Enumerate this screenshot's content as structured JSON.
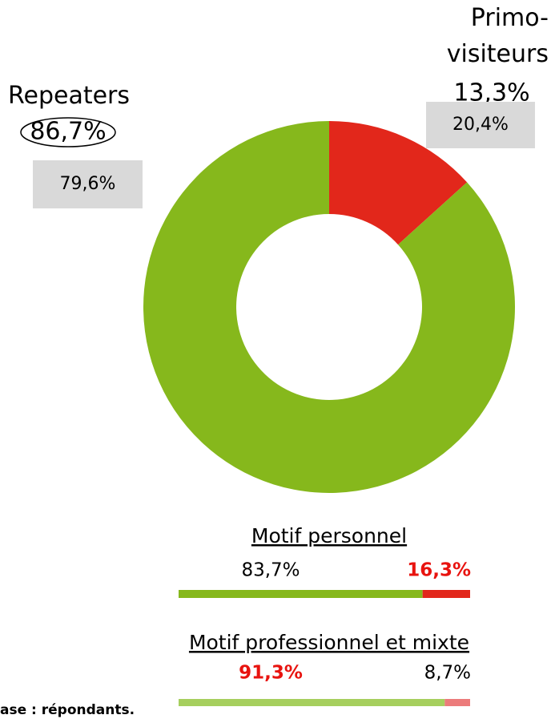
{
  "chart_data": [
    {
      "type": "pie",
      "donut": true,
      "categories": [
        "Primo-visiteurs",
        "Repeaters"
      ],
      "values": [
        13.3,
        86.7
      ],
      "value_labels": [
        "13,3%",
        "86,7%"
      ],
      "colors": [
        "#e2271b",
        "#86b81c"
      ],
      "comparison_values": [
        20.4,
        79.6
      ],
      "comparison_labels": [
        "20,4%",
        "79,6%"
      ]
    },
    {
      "type": "stacked-bar",
      "title": "Motif personnel",
      "values": [
        83.7,
        16.3
      ],
      "value_labels": [
        "83,7%",
        "16,3%"
      ],
      "colors": [
        "#86b81c",
        "#e2271b"
      ],
      "highlight": 1
    },
    {
      "type": "stacked-bar",
      "title": "Motif professionnel et mixte",
      "values": [
        91.3,
        8.7
      ],
      "value_labels": [
        "91,3%",
        "8,7%"
      ],
      "colors": [
        "#a6cf5e",
        "#ec7b7b"
      ],
      "highlight": 0
    }
  ],
  "footnote": "ase : répondants."
}
